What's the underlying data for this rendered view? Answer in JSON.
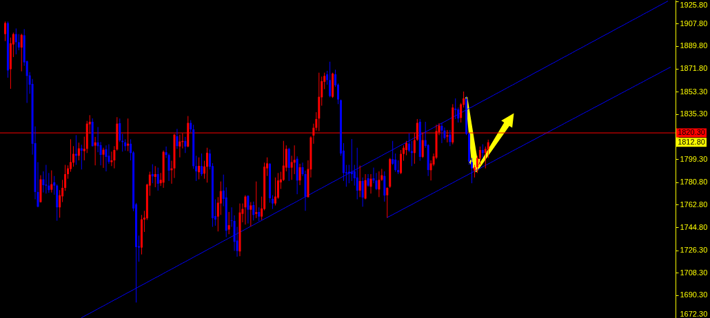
{
  "chart_data": {
    "type": "candlestick",
    "categories": [
      null,
      null,
      null,
      null,
      null,
      null,
      null,
      null,
      null,
      null,
      null,
      null,
      null,
      null,
      null,
      null,
      null,
      null,
      null,
      null,
      null,
      null,
      null,
      null,
      null,
      null,
      null,
      null,
      null,
      null,
      null,
      null,
      null,
      null,
      null,
      null,
      null,
      null,
      null,
      null,
      null,
      null,
      null,
      null,
      null,
      null,
      null,
      null,
      null,
      null,
      null,
      null,
      null,
      null,
      null,
      null,
      null,
      null,
      null,
      null,
      null,
      null,
      null,
      null,
      null,
      null,
      null,
      null,
      null,
      null,
      null,
      null,
      null,
      null,
      null,
      null,
      null,
      null,
      null,
      null,
      null,
      null,
      null,
      null,
      null,
      null,
      null,
      null,
      null,
      null,
      null,
      null,
      null,
      null,
      null,
      null,
      null,
      null,
      null,
      null,
      null,
      null,
      null,
      null,
      null,
      null,
      null,
      null,
      null,
      null,
      null,
      null,
      null,
      null,
      null,
      null,
      null,
      null,
      null,
      null,
      null,
      null,
      null,
      null,
      null,
      null,
      null,
      null,
      null,
      null,
      null,
      null,
      null,
      null,
      null,
      null,
      null,
      null,
      null,
      null,
      null,
      null,
      null,
      null,
      null,
      null,
      null,
      null,
      null,
      null,
      null,
      null,
      null,
      null,
      null,
      null,
      null,
      null,
      null,
      null,
      null,
      null,
      null,
      null,
      null,
      null,
      null,
      null,
      null,
      null,
      null,
      null,
      null,
      null,
      null,
      null,
      null,
      null,
      null,
      null,
      null,
      null,
      null,
      null,
      null,
      null,
      null,
      null,
      null,
      null,
      null,
      null,
      null,
      null,
      null,
      null,
      null,
      null,
      null,
      null,
      null,
      null,
      null,
      null,
      null,
      null,
      null,
      null,
      null,
      null,
      null,
      null,
      null,
      null,
      null,
      null,
      null,
      null,
      null,
      null,
      null,
      null,
      null,
      null,
      null,
      null,
      null,
      null,
      null,
      null,
      null,
      null,
      null,
      null,
      null,
      null,
      null,
      null,
      null,
      null,
      null,
      null,
      null,
      null,
      null
    ],
    "ohlc": [
      [
        1899.4,
        1909.5,
        1893.8,
        1908.2
      ],
      [
        1908.2,
        1909.5,
        1864.5,
        1870.3
      ],
      [
        1871.3,
        1896.6,
        1855.6,
        1892.0
      ],
      [
        1891.1,
        1900.6,
        1881.0,
        1899.4
      ],
      [
        1899.4,
        1903.9,
        1883.2,
        1892.9
      ],
      [
        1892.9,
        1899.4,
        1886.5,
        1888.7
      ],
      [
        1888.7,
        1899.7,
        1869.6,
        1898.8
      ],
      [
        1898.4,
        1903.4,
        1874.0,
        1876.8
      ],
      [
        1877.7,
        1878.2,
        1844.3,
        1865.9
      ],
      [
        1866.3,
        1869.0,
        1851.6,
        1858.9
      ],
      [
        1859.5,
        1863.5,
        1802.9,
        1811.6
      ],
      [
        1812.1,
        1825.5,
        1767.1,
        1773.0
      ],
      [
        1773.0,
        1796.9,
        1760.7,
        1761.2
      ],
      [
        1764.9,
        1786.4,
        1764.5,
        1783.1
      ],
      [
        1783.1,
        1789.5,
        1772.6,
        1778.5
      ],
      [
        1778.9,
        1794.7,
        1771.7,
        1778.1
      ],
      [
        1778.1,
        1788.2,
        1772.3,
        1774.5
      ],
      [
        1774.8,
        1790.3,
        1772.6,
        1779.2
      ],
      [
        1780.7,
        1785.8,
        1770.8,
        1778.1
      ],
      [
        1778.1,
        1779.1,
        1750.0,
        1760.7
      ],
      [
        1760.7,
        1774.5,
        1752.4,
        1770.4
      ],
      [
        1769.5,
        1782.7,
        1764.9,
        1776.3
      ],
      [
        1776.3,
        1794.7,
        1773.9,
        1787.3
      ],
      [
        1787.3,
        1794.3,
        1783.6,
        1791.9
      ],
      [
        1791.4,
        1815.2,
        1789.2,
        1796.9
      ],
      [
        1796.5,
        1809.7,
        1793.2,
        1803.5
      ],
      [
        1803.5,
        1818.5,
        1794.7,
        1802.0
      ],
      [
        1802.0,
        1812.5,
        1798.3,
        1807.9
      ],
      [
        1807.9,
        1810.8,
        1791.0,
        1806.1
      ],
      [
        1805.7,
        1817.3,
        1798.3,
        1807.5
      ],
      [
        1807.5,
        1829.9,
        1804.2,
        1827.7
      ],
      [
        1827.2,
        1834.5,
        1819.5,
        1829.2
      ],
      [
        1829.2,
        1831.9,
        1809.4,
        1809.7
      ],
      [
        1810.1,
        1817.1,
        1794.3,
        1812.7
      ],
      [
        1812.7,
        1825.0,
        1804.8,
        1809.7
      ],
      [
        1810.5,
        1813.0,
        1794.3,
        1802.7
      ],
      [
        1802.9,
        1808.4,
        1792.3,
        1806.8
      ],
      [
        1807.2,
        1810.3,
        1789.5,
        1801.1
      ],
      [
        1802.0,
        1811.2,
        1795.6,
        1797.1
      ],
      [
        1796.9,
        1805.3,
        1793.7,
        1798.3
      ],
      [
        1798.3,
        1809.7,
        1791.9,
        1806.6
      ],
      [
        1807.0,
        1832.9,
        1806.1,
        1827.7
      ],
      [
        1828.1,
        1831.8,
        1813.0,
        1814.3
      ],
      [
        1813.9,
        1819.5,
        1805.3,
        1813.0
      ],
      [
        1812.7,
        1815.2,
        1806.1,
        1809.7
      ],
      [
        1810.1,
        1831.8,
        1805.7,
        1811.7
      ],
      [
        1811.6,
        1815.2,
        1798.3,
        1804.2
      ],
      [
        1804.6,
        1805.7,
        1757.6,
        1759.8
      ],
      [
        1763.1,
        1764.2,
        1684.5,
        1728.9
      ],
      [
        1729.6,
        1738.1,
        1717.2,
        1728.5
      ],
      [
        1728.5,
        1754.6,
        1723.0,
        1751.1
      ],
      [
        1750.9,
        1757.9,
        1741.0,
        1752.4
      ],
      [
        1751.9,
        1779.6,
        1750.6,
        1778.9
      ],
      [
        1778.1,
        1789.2,
        1769.9,
        1786.9
      ],
      [
        1787.3,
        1795.2,
        1780.0,
        1785.5
      ],
      [
        1785.1,
        1793.7,
        1776.8,
        1787.3
      ],
      [
        1787.3,
        1792.5,
        1774.1,
        1779.6
      ],
      [
        1780.0,
        1788.2,
        1777.8,
        1782.7
      ],
      [
        1780.5,
        1806.2,
        1776.3,
        1805.1
      ],
      [
        1804.8,
        1809.4,
        1800.2,
        1802.6
      ],
      [
        1802.6,
        1803.8,
        1781.8,
        1790.1
      ],
      [
        1790.4,
        1798.0,
        1779.6,
        1791.9
      ],
      [
        1791.9,
        1819.5,
        1784.2,
        1818.9
      ],
      [
        1817.6,
        1823.5,
        1807.5,
        1809.7
      ],
      [
        1809.4,
        1818.9,
        1800.7,
        1813.4
      ],
      [
        1813.0,
        1820.0,
        1807.9,
        1813.8
      ],
      [
        1813.8,
        1817.1,
        1804.2,
        1809.4
      ],
      [
        1809.4,
        1833.8,
        1808.8,
        1828.3
      ],
      [
        1828.3,
        1830.5,
        1820.7,
        1823.1
      ],
      [
        1823.1,
        1826.8,
        1791.5,
        1793.7
      ],
      [
        1793.7,
        1802.0,
        1781.8,
        1789.5
      ],
      [
        1788.8,
        1800.7,
        1783.1,
        1793.9
      ],
      [
        1793.7,
        1803.8,
        1785.8,
        1787.3
      ],
      [
        1787.7,
        1798.0,
        1783.6,
        1793.4
      ],
      [
        1793.2,
        1808.4,
        1780.5,
        1804.4
      ],
      [
        1803.8,
        1807.0,
        1791.0,
        1793.2
      ],
      [
        1793.7,
        1796.1,
        1745.1,
        1752.1
      ],
      [
        1753.7,
        1767.1,
        1746.0,
        1750.9
      ],
      [
        1753.3,
        1768.9,
        1741.4,
        1764.4
      ],
      [
        1763.8,
        1781.4,
        1754.6,
        1773.7
      ],
      [
        1774.1,
        1786.9,
        1761.6,
        1767.5
      ],
      [
        1768.6,
        1776.7,
        1736.8,
        1742.0
      ],
      [
        1742.9,
        1757.0,
        1739.2,
        1746.4
      ],
      [
        1750.2,
        1760.7,
        1745.1,
        1749.8
      ],
      [
        1749.8,
        1754.3,
        1725.8,
        1733.1
      ],
      [
        1734.1,
        1745.1,
        1721.2,
        1725.8
      ],
      [
        1725.4,
        1763.8,
        1721.6,
        1756.6
      ],
      [
        1755.5,
        1763.8,
        1748.7,
        1759.4
      ],
      [
        1760.7,
        1770.4,
        1746.9,
        1769.3
      ],
      [
        1769.9,
        1770.4,
        1747.8,
        1758.8
      ],
      [
        1758.8,
        1764.9,
        1745.4,
        1762.2
      ],
      [
        1762.5,
        1765.3,
        1750.2,
        1754.6
      ],
      [
        1755.5,
        1781.4,
        1752.1,
        1756.8
      ],
      [
        1757.0,
        1760.7,
        1749.7,
        1753.3
      ],
      [
        1753.3,
        1769.3,
        1750.6,
        1759.8
      ],
      [
        1759.4,
        1796.5,
        1758.3,
        1793.2
      ],
      [
        1791.9,
        1800.7,
        1785.8,
        1795.9
      ],
      [
        1795.6,
        1796.1,
        1764.4,
        1768.0
      ],
      [
        1767.5,
        1770.4,
        1759.4,
        1763.8
      ],
      [
        1763.8,
        1784.6,
        1762.2,
        1769.3
      ],
      [
        1768.4,
        1788.2,
        1767.5,
        1782.2
      ],
      [
        1780.7,
        1789.2,
        1775.4,
        1783.1
      ],
      [
        1782.7,
        1813.9,
        1781.8,
        1794.1
      ],
      [
        1792.5,
        1810.3,
        1789.5,
        1807.5
      ],
      [
        1807.5,
        1808.4,
        1781.8,
        1792.3
      ],
      [
        1792.5,
        1802.0,
        1782.7,
        1796.9
      ],
      [
        1796.5,
        1810.3,
        1787.3,
        1798.7
      ],
      [
        1799.6,
        1801.5,
        1771.2,
        1782.2
      ],
      [
        1782.2,
        1795.6,
        1778.5,
        1792.8
      ],
      [
        1792.8,
        1796.5,
        1785.8,
        1787.3
      ],
      [
        1787.3,
        1790.1,
        1757.9,
        1769.3
      ],
      [
        1768.9,
        1798.3,
        1768.5,
        1791.4
      ],
      [
        1791.0,
        1817.6,
        1784.6,
        1816.7
      ],
      [
        1818.2,
        1827.7,
        1811.6,
        1824.4
      ],
      [
        1824.4,
        1836.9,
        1822.2,
        1831.4
      ],
      [
        1831.8,
        1868.5,
        1821.7,
        1849.2
      ],
      [
        1848.8,
        1865.4,
        1842.1,
        1861.7
      ],
      [
        1861.2,
        1868.5,
        1855.3,
        1865.9
      ],
      [
        1867.2,
        1870.0,
        1858.9,
        1862.6
      ],
      [
        1862.6,
        1877.3,
        1848.8,
        1849.8
      ],
      [
        1849.2,
        1868.5,
        1848.3,
        1867.8
      ],
      [
        1867.2,
        1870.9,
        1857.1,
        1858.4
      ],
      [
        1858.9,
        1859.9,
        1843.3,
        1847.0
      ],
      [
        1846.5,
        1847.0,
        1802.0,
        1803.8
      ],
      [
        1806.1,
        1812.1,
        1781.8,
        1788.2
      ],
      [
        1788.8,
        1794.7,
        1777.2,
        1787.9
      ],
      [
        1789.2,
        1794.7,
        1780.0,
        1787.9
      ],
      [
        1789.2,
        1815.4,
        1781.8,
        1787.3
      ],
      [
        1789.5,
        1794.7,
        1778.1,
        1784.0
      ],
      [
        1784.6,
        1808.4,
        1767.1,
        1774.1
      ],
      [
        1774.1,
        1794.1,
        1768.9,
        1781.8
      ],
      [
        1781.8,
        1784.6,
        1761.2,
        1768.6
      ],
      [
        1767.7,
        1787.3,
        1767.1,
        1782.4
      ],
      [
        1784.0,
        1787.3,
        1777.2,
        1778.1
      ],
      [
        1777.2,
        1787.3,
        1771.7,
        1783.6
      ],
      [
        1784.0,
        1792.5,
        1780.0,
        1782.2
      ],
      [
        1782.2,
        1788.2,
        1774.5,
        1775.4
      ],
      [
        1775.0,
        1789.5,
        1768.9,
        1782.7
      ],
      [
        1782.7,
        1791.5,
        1781.8,
        1786.4
      ],
      [
        1785.8,
        1789.5,
        1765.3,
        1770.2
      ],
      [
        1770.4,
        1776.7,
        1752.4,
        1776.3
      ],
      [
        1777.2,
        1800.2,
        1776.3,
        1799.3
      ],
      [
        1799.3,
        1813.9,
        1794.7,
        1795.6
      ],
      [
        1798.9,
        1803.8,
        1789.2,
        1790.6
      ],
      [
        1790.6,
        1798.3,
        1787.3,
        1788.8
      ],
      [
        1788.2,
        1806.6,
        1787.3,
        1803.5
      ],
      [
        1803.5,
        1810.3,
        1798.0,
        1808.4
      ],
      [
        1806.6,
        1813.9,
        1802.4,
        1812.1
      ],
      [
        1811.7,
        1820.0,
        1804.8,
        1806.1
      ],
      [
        1805.7,
        1813.9,
        1793.7,
        1804.2
      ],
      [
        1804.2,
        1820.4,
        1795.6,
        1814.5
      ],
      [
        1814.9,
        1831.4,
        1813.9,
        1828.3
      ],
      [
        1829.2,
        1831.4,
        1798.0,
        1801.1
      ],
      [
        1801.1,
        1820.4,
        1800.2,
        1814.5
      ],
      [
        1814.5,
        1829.2,
        1808.4,
        1809.9
      ],
      [
        1810.6,
        1811.2,
        1785.8,
        1790.6
      ],
      [
        1790.4,
        1798.3,
        1782.2,
        1795.9
      ],
      [
        1795.0,
        1803.8,
        1793.7,
        1801.5
      ],
      [
        1800.5,
        1826.8,
        1799.3,
        1821.8
      ],
      [
        1820.7,
        1828.1,
        1818.5,
        1826.3
      ],
      [
        1825.9,
        1828.1,
        1812.1,
        1822.2
      ],
      [
        1822.2,
        1824.6,
        1814.9,
        1816.2
      ],
      [
        1817.3,
        1822.6,
        1812.7,
        1818.5
      ],
      [
        1818.9,
        1822.6,
        1809.7,
        1813.0
      ],
      [
        1812.7,
        1843.3,
        1811.2,
        1840.6
      ],
      [
        1839.7,
        1847.9,
        1831.4,
        1838.7
      ],
      [
        1839.1,
        1840.6,
        1828.6,
        1831.8
      ],
      [
        1832.3,
        1844.3,
        1828.6,
        1843.2
      ],
      [
        1842.8,
        1853.4,
        1840.6,
        1847.9
      ],
      [
        1847.6,
        1849.8,
        1818.5,
        1819.5
      ],
      [
        1819.5,
        1820.4,
        1794.7,
        1797.4
      ],
      [
        1796.9,
        1800.2,
        1780.0,
        1791.9
      ],
      [
        1790.1,
        1794.7,
        1784.6,
        1792.8
      ],
      [
        1792.8,
        1802.0,
        1788.2,
        1800.2
      ],
      [
        1800.2,
        1809.4,
        1794.7,
        1806.6
      ],
      [
        1806.6,
        1811.2,
        1800.2,
        1804.2
      ],
      [
        1804.2,
        1809.4,
        1791.9,
        1807.5
      ],
      [
        1807.2,
        1814.9,
        1800.2,
        1812.8
      ],
      null,
      null,
      null,
      null,
      null,
      null,
      null,
      null,
      null,
      null,
      null,
      null,
      null,
      null,
      null,
      null,
      null,
      null,
      null,
      null,
      null,
      null,
      null,
      null,
      null,
      null,
      null,
      null,
      null,
      null,
      null,
      null,
      null,
      null,
      null,
      null,
      null,
      null,
      null,
      null,
      null,
      null,
      null,
      null,
      null,
      null,
      null,
      null,
      null,
      null,
      null,
      null,
      null,
      null,
      null,
      null,
      null,
      null,
      null,
      null,
      null,
      null,
      null,
      null,
      null,
      null,
      null
    ],
    "colors": [
      "#ff0000",
      "#0000ff",
      "#ff0000",
      "#ff0000",
      "#0000ff",
      "#0000ff",
      "#ff0000",
      "#0000ff",
      "#0000ff",
      "#0000ff",
      "#0000ff",
      "#0000ff",
      "#0000ff",
      "#ff0000",
      "#0000ff",
      "#0000ff",
      "#0000ff",
      "#ff0000",
      "#0000ff",
      "#0000ff",
      "#ff0000",
      "#ff0000",
      "#ff0000",
      "#ff0000",
      "#ff0000",
      "#ff0000",
      "#0000ff",
      "#ff0000",
      "#0000ff",
      "#ff0000",
      "#ff0000",
      "#ff0000",
      "#0000ff",
      "#ff0000",
      "#0000ff",
      "#0000ff",
      "#ff0000",
      "#0000ff",
      "#0000ff",
      "#ff0000",
      "#ff0000",
      "#ff0000",
      "#0000ff",
      "#0000ff",
      "#0000ff",
      "#ff0000",
      "#0000ff",
      "#0000ff",
      "#0000ff",
      "#0000ff",
      "#ff0000",
      "#ff0000",
      "#ff0000",
      "#ff0000",
      "#0000ff",
      "#ff0000",
      "#0000ff",
      "#ff0000",
      "#ff0000",
      "#0000ff",
      "#0000ff",
      "#ff0000",
      "#ff0000",
      "#0000ff",
      "#ff0000",
      "#ff0000",
      "#0000ff",
      "#ff0000",
      "#0000ff",
      "#0000ff",
      "#0000ff",
      "#ff0000",
      "#0000ff",
      "#ff0000",
      "#ff0000",
      "#0000ff",
      "#0000ff",
      "#0000ff",
      "#ff0000",
      "#ff0000",
      "#0000ff",
      "#0000ff",
      "#ff0000",
      "#0000ff",
      "#0000ff",
      "#0000ff",
      "#ff0000",
      "#ff0000",
      "#ff0000",
      "#0000ff",
      "#ff0000",
      "#0000ff",
      "#ff0000",
      "#0000ff",
      "#ff0000",
      "#ff0000",
      "#ff0000",
      "#0000ff",
      "#0000ff",
      "#ff0000",
      "#ff0000",
      "#ff0000",
      "#ff0000",
      "#ff0000",
      "#0000ff",
      "#ff0000",
      "#ff0000",
      "#0000ff",
      "#ff0000",
      "#0000ff",
      "#0000ff",
      "#ff0000",
      "#ff0000",
      "#ff0000",
      "#ff0000",
      "#ff0000",
      "#ff0000",
      "#ff0000",
      "#0000ff",
      "#0000ff",
      "#ff0000",
      "#0000ff",
      "#0000ff",
      "#0000ff",
      "#0000ff",
      "#0000ff",
      "#0000ff",
      "#0000ff",
      "#0000ff",
      "#0000ff",
      "#ff0000",
      "#0000ff",
      "#ff0000",
      "#0000ff",
      "#ff0000",
      "#0000ff",
      "#0000ff",
      "#ff0000",
      "#ff0000",
      "#0000ff",
      "#ff0000",
      "#ff0000",
      "#0000ff",
      "#0000ff",
      "#0000ff",
      "#ff0000",
      "#ff0000",
      "#ff0000",
      "#0000ff",
      "#0000ff",
      "#ff0000",
      "#ff0000",
      "#0000ff",
      "#ff0000",
      "#0000ff",
      "#0000ff",
      "#ff0000",
      "#ff0000",
      "#ff0000",
      "#ff0000",
      "#0000ff",
      "#0000ff",
      "#ff0000",
      "#0000ff",
      "#ff0000",
      "#0000ff",
      "#0000ff",
      "#ff0000",
      "#ff0000",
      "#0000ff",
      "#0000ff",
      "#0000ff",
      "#ff0000",
      "#ff0000",
      "#ff0000",
      "#0000ff",
      "#ff0000",
      "#ff0000",
      null,
      null,
      null,
      null,
      null,
      null,
      null,
      null,
      null,
      null,
      null,
      null,
      null,
      null,
      null,
      null,
      null,
      null,
      null,
      null,
      null,
      null,
      null,
      null,
      null,
      null,
      null,
      null,
      null,
      null,
      null,
      null,
      null,
      null,
      null,
      null,
      null,
      null,
      null,
      null,
      null,
      null,
      null,
      null,
      null,
      null,
      null,
      null,
      null,
      null,
      null,
      null,
      null,
      null,
      null,
      null,
      null,
      null,
      null,
      null,
      null,
      null,
      null,
      null,
      null,
      null,
      null
    ],
    "series": [
      {
        "type": "line",
        "color": "#0000ff",
        "values": [
          null,
          null,
          null,
          null,
          null,
          null,
          null,
          null,
          null,
          null,
          null,
          null,
          null,
          null,
          null,
          null,
          null,
          null,
          null,
          null,
          null,
          null,
          null,
          null,
          null,
          null,
          null,
          null,
          1672.2,
          1673.4,
          1674.6,
          1675.7,
          1676.9,
          1678.1,
          1679.3,
          1680.5,
          1681.6,
          1682.8,
          1684.0,
          1685.2,
          1686.4,
          1687.5,
          1688.7,
          1689.9,
          1691.1,
          1692.3,
          1693.4,
          1694.6,
          1695.8,
          1697.0,
          1698.2,
          1699.3,
          1700.5,
          1701.7,
          1702.9,
          1704.1,
          1705.2,
          1706.4,
          1707.6,
          1708.8,
          1710.0,
          1711.1,
          1712.3,
          1713.5,
          1714.7,
          1715.9,
          1717.0,
          1718.2,
          1719.4,
          1720.6,
          1721.8,
          1722.9,
          1724.1,
          1725.3,
          1726.5,
          1727.7,
          1728.8,
          1730.0,
          1731.2,
          1732.4,
          1733.6,
          1734.7,
          1735.9,
          1737.1,
          1738.3,
          1739.5,
          1740.6,
          1741.8,
          1743.0,
          1744.2,
          1745.4,
          1746.5,
          1747.7,
          1748.9,
          1750.1,
          1751.3,
          1752.4,
          1753.6,
          1754.8,
          1756.0,
          1757.2,
          1758.3,
          1759.5,
          1760.7,
          1761.9,
          1763.1,
          1764.2,
          1765.4,
          1766.6,
          1767.8,
          1769.0,
          1770.1,
          1771.3,
          1772.5,
          1773.7,
          1774.9,
          1776.0,
          1777.2,
          1778.4,
          1779.6,
          1780.8,
          1781.9,
          1783.1,
          1784.3,
          1785.5,
          1786.7,
          1787.8,
          1789.0,
          1790.2,
          1791.4,
          1792.6,
          1793.7,
          1794.9,
          1796.1,
          1797.3,
          1798.5,
          1799.6,
          1800.8,
          1802.0,
          1803.2,
          1804.4,
          1805.5,
          1806.7,
          1807.9,
          1809.1,
          1810.3,
          1811.4,
          1812.6,
          1813.8,
          1815.0,
          1816.2,
          1817.3,
          1818.5,
          1819.7,
          1820.9,
          1822.1,
          1823.2,
          1824.4,
          1825.6,
          1826.8,
          1828.0,
          1829.1,
          1830.3,
          1831.5,
          1832.7,
          1833.9,
          1835.0,
          1836.2,
          1837.4,
          1838.6,
          1839.8,
          1840.9,
          1842.1,
          1843.3,
          1844.5,
          1845.7,
          1846.8,
          1848.0,
          1849.2,
          1850.4,
          1851.6,
          1852.7,
          1853.9,
          1855.1,
          1856.3,
          1857.5,
          1858.6,
          1859.8,
          1861.0,
          1862.2,
          1863.4,
          1864.5,
          1865.7,
          1866.9,
          1868.1,
          1869.3,
          1870.4,
          1871.6,
          1872.8,
          1874.0,
          1875.2,
          1876.3,
          1877.5,
          1878.7,
          1879.9,
          1881.1,
          1882.2,
          1883.4,
          1884.6,
          1885.8,
          1887.0,
          1888.1,
          1889.3,
          1890.5,
          1891.7,
          1892.9,
          1894.0,
          1895.2,
          1896.4,
          1897.6,
          1898.8,
          1899.9,
          1901.1,
          1902.3,
          1903.5,
          1904.7,
          1905.8,
          1907.0,
          1908.2,
          1909.4,
          1910.6,
          1911.7,
          1912.9,
          1914.1,
          1915.3,
          1916.5,
          1917.6,
          1918.8,
          1920.0,
          1921.2,
          1922.4,
          1923.5,
          1924.7,
          1925.9,
          null
        ]
      },
      {
        "type": "line",
        "color": "#0000ff",
        "values": [
          null,
          null,
          null,
          null,
          null,
          null,
          null,
          null,
          null,
          null,
          null,
          null,
          null,
          null,
          null,
          null,
          null,
          null,
          null,
          null,
          null,
          null,
          null,
          null,
          null,
          null,
          null,
          null,
          null,
          null,
          null,
          null,
          null,
          null,
          null,
          null,
          null,
          null,
          null,
          null,
          null,
          null,
          null,
          null,
          null,
          null,
          null,
          null,
          null,
          null,
          null,
          null,
          null,
          null,
          null,
          null,
          null,
          null,
          null,
          null,
          null,
          null,
          null,
          null,
          null,
          null,
          null,
          null,
          null,
          null,
          null,
          null,
          null,
          null,
          null,
          null,
          null,
          null,
          null,
          null,
          null,
          null,
          null,
          null,
          null,
          null,
          null,
          null,
          null,
          null,
          null,
          null,
          null,
          null,
          null,
          null,
          null,
          null,
          null,
          null,
          null,
          null,
          null,
          null,
          null,
          null,
          null,
          null,
          null,
          null,
          null,
          null,
          null,
          null,
          null,
          null,
          null,
          null,
          null,
          null,
          null,
          null,
          null,
          null,
          null,
          null,
          null,
          null,
          null,
          null,
          null,
          null,
          null,
          null,
          null,
          null,
          null,
          null,
          null,
          null,
          1752.4,
          1753.6,
          1754.7,
          1755.9,
          1757.0,
          1758.2,
          1759.4,
          1760.5,
          1761.7,
          1762.8,
          1764.0,
          1765.2,
          1766.3,
          1767.5,
          1768.6,
          1769.8,
          1771.0,
          1772.1,
          1773.3,
          1774.4,
          1775.6,
          1776.8,
          1777.9,
          1779.1,
          1780.2,
          1781.4,
          1782.6,
          1783.7,
          1784.9,
          1786.0,
          1787.2,
          1788.4,
          1789.5,
          1790.7,
          1791.8,
          1793.0,
          1794.2,
          1795.3,
          1796.5,
          1797.6,
          1798.8,
          1800.0,
          1801.1,
          1802.3,
          1803.4,
          1804.6,
          1805.8,
          1806.9,
          1808.1,
          1809.2,
          1810.4,
          1811.6,
          1812.7,
          1813.9,
          1815.0,
          1816.2,
          1817.4,
          1818.5,
          1819.7,
          1820.8,
          1822.0,
          1823.2,
          1824.3,
          1825.5,
          1826.6,
          1827.8,
          1829.0,
          1830.1,
          1831.3,
          1832.4,
          1833.6,
          1834.8,
          1835.9,
          1837.1,
          1838.2,
          1839.4,
          1840.6,
          1841.7,
          1842.9,
          1844.0,
          1845.2,
          1846.4,
          1847.5,
          1848.7,
          1849.8,
          1851.0,
          1852.2,
          1853.3,
          1854.5,
          1855.6,
          1856.8,
          1858.0,
          1859.1,
          1860.3,
          1861.4,
          1862.6,
          1863.8,
          1864.9,
          1866.1,
          1867.2,
          1868.4,
          1869.6,
          1870.7,
          1871.9,
          1873.0
        ]
      }
    ],
    "ylim": [
      1672.1,
      1926.7
    ],
    "yticks": [
      {
        "value": 1672.3,
        "label": "1672.30"
      },
      {
        "value": 1690.3,
        "label": "1690.30"
      },
      {
        "value": 1708.3,
        "label": "1708.30"
      },
      {
        "value": 1726.3,
        "label": "1726.30"
      },
      {
        "value": 1744.8,
        "label": "1744.80"
      },
      {
        "value": 1762.8,
        "label": "1762.80"
      },
      {
        "value": 1780.8,
        "label": "1780.80"
      },
      {
        "value": 1799.3,
        "label": "1799.30"
      },
      {
        "value": 1817.3,
        "label": null
      },
      {
        "value": 1835.3,
        "label": "1835.30"
      },
      {
        "value": 1853.3,
        "label": "1853.30"
      },
      {
        "value": 1871.8,
        "label": "1871.80"
      },
      {
        "value": 1889.8,
        "label": "1889.80"
      },
      {
        "value": 1907.8,
        "label": "1907.80"
      },
      {
        "value": 1925.8,
        "label": "1925.80"
      }
    ],
    "ref_lines": [
      {
        "axis": "y",
        "value": 1820.3,
        "label": "1820.30",
        "color": "#ff0000"
      }
    ],
    "annotations": [
      "1812.80"
    ],
    "tick_labels": "y"
  }
}
